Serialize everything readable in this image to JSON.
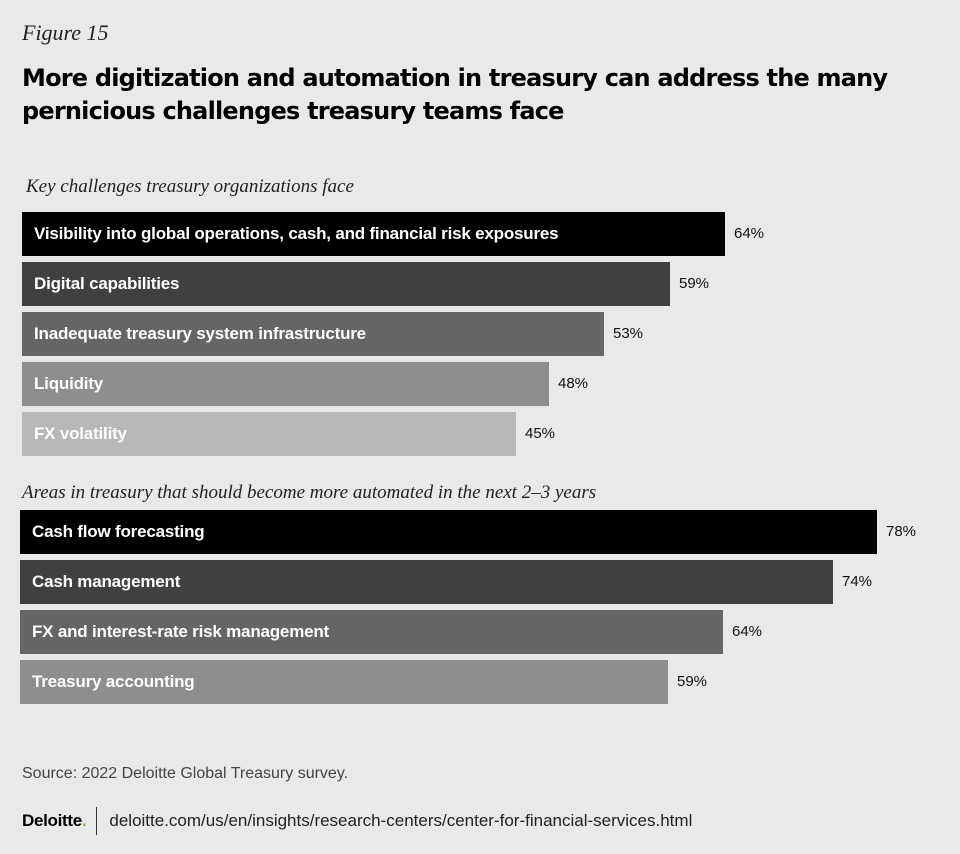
{
  "figure_label": "Figure 15",
  "title": "More digitization and automation in treasury can address the many pernicious challenges treasury teams face",
  "colors": {
    "shades": [
      "#000000",
      "#404040",
      "#656565",
      "#8e8e8e",
      "#b8b8b8"
    ]
  },
  "chart_data": [
    {
      "type": "bar",
      "orientation": "horizontal",
      "title": "Key challenges treasury organizations face",
      "categories": [
        "Visibility into global operations, cash, and financial risk exposures",
        "Digital capabilities",
        "Inadequate treasury system infrastructure",
        "Liquidity",
        "FX volatility"
      ],
      "values": [
        64,
        59,
        53,
        48,
        45
      ],
      "value_labels": [
        "64%",
        "59%",
        "53%",
        "48%",
        "45%"
      ],
      "xlim": [
        0,
        78
      ]
    },
    {
      "type": "bar",
      "orientation": "horizontal",
      "title": "Areas in treasury that should become more automated in the next 2–3 years",
      "categories": [
        "Cash flow forecasting",
        "Cash management",
        "FX and interest-rate risk management",
        "Treasury accounting"
      ],
      "values": [
        78,
        74,
        64,
        59
      ],
      "value_labels": [
        "78%",
        "74%",
        "64%",
        "59%"
      ],
      "xlim": [
        0,
        78
      ]
    }
  ],
  "source": "Source: 2022 Deloitte Global Treasury survey.",
  "footer": {
    "logo_text": "Deloitte",
    "logo_dot": ".",
    "url": "deloitte.com/us/en/insights/research-centers/center-for-financial-services.html"
  }
}
